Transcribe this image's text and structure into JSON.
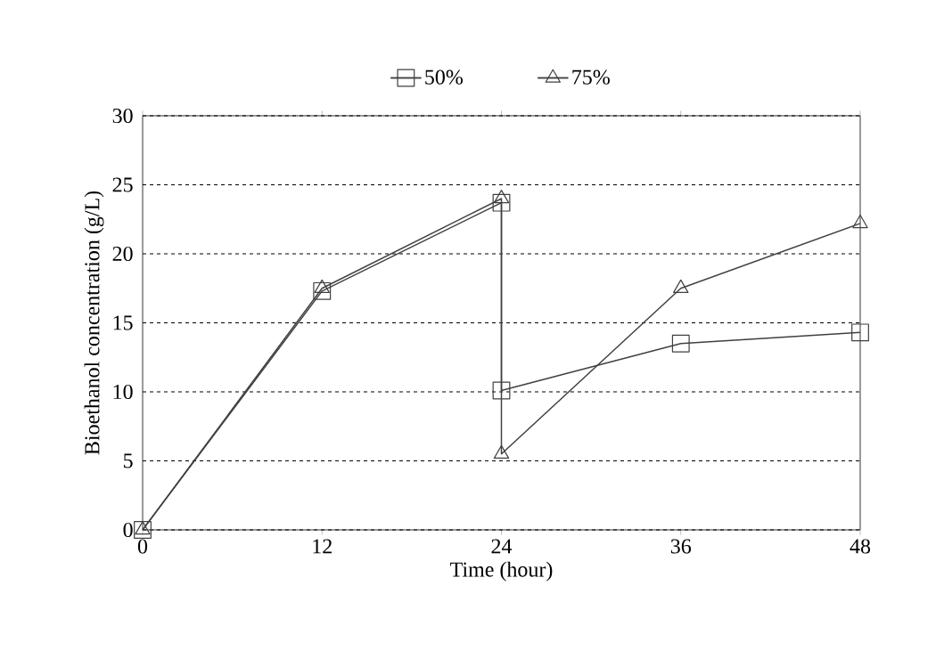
{
  "chart_data": {
    "type": "line",
    "xlabel": "Time (hour)",
    "ylabel": "Bioethanol concentration (g/L)",
    "xlim": [
      0,
      48
    ],
    "xticks": [
      0,
      12,
      24,
      36,
      48
    ],
    "ylim": [
      0,
      30
    ],
    "yticks": [
      0,
      5,
      10,
      15,
      20,
      25,
      30
    ],
    "grid": "y",
    "legend": "top",
    "line_style": "solid",
    "series": [
      {
        "name": "50%",
        "color": "#404040",
        "marker": "square",
        "x": [
          0,
          12,
          24,
          24,
          36,
          48
        ],
        "values": [
          0,
          17.3,
          23.7,
          10.1,
          13.5,
          14.3
        ]
      },
      {
        "name": "75%",
        "color": "#404040",
        "marker": "triangle",
        "x": [
          0,
          12,
          24,
          24,
          36,
          48
        ],
        "values": [
          0,
          17.5,
          24.0,
          5.5,
          17.5,
          22.2
        ]
      }
    ]
  }
}
